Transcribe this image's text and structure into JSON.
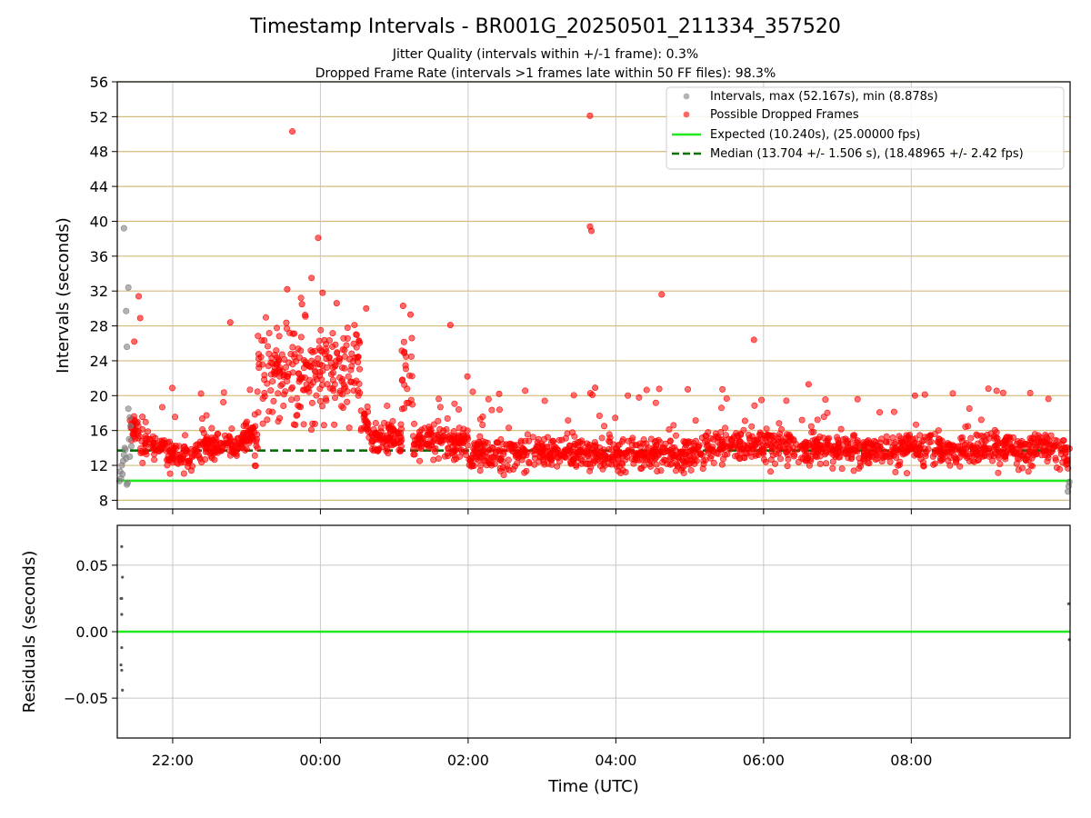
{
  "figure": {
    "title": "Timestamp Intervals - BR001G_20250501_211334_357520",
    "subtitle1": "Jitter Quality (intervals within +/-1 frame): 0.3%",
    "subtitle2": "Dropped Frame Rate (intervals >1 frames late within 50 FF files): 98.3%"
  },
  "colors": {
    "intervals": "#808080",
    "dropped": "#ff0000",
    "expected": "#1ee81e",
    "median": "#007000",
    "hgrid": "#d4b97a",
    "vgrid": "#c8c8c8"
  },
  "chart_data": [
    {
      "type": "scatter",
      "name": "intervals",
      "xlabel": "",
      "ylabel": "Intervals (seconds)",
      "x_unit": "hours since 00:00 UTC",
      "xlim": [
        -2.75,
        10.15
      ],
      "ylim": [
        7,
        56
      ],
      "y_ticks": [
        8,
        12,
        16,
        20,
        24,
        28,
        32,
        36,
        40,
        44,
        48,
        52,
        56
      ],
      "x_ticks": [
        {
          "value": -2,
          "label": "22:00"
        },
        {
          "value": 0,
          "label": "00:00"
        },
        {
          "value": 2,
          "label": "02:00"
        },
        {
          "value": 4,
          "label": "04:00"
        },
        {
          "value": 6,
          "label": "06:00"
        },
        {
          "value": 8,
          "label": "08:00"
        }
      ],
      "legend_position": "top-right",
      "legend": [
        "Intervals, max (52.167s), min (8.878s)",
        "Possible Dropped Frames",
        "Expected (10.240s), (25.00000 fps)",
        "Median (13.704 +/- 1.506 s), (18.48965 +/- 2.42 fps)"
      ],
      "expected_y": 10.24,
      "median_y": 13.704,
      "series": [
        {
          "name": "Intervals",
          "points": [
            [
              -2.72,
              10.2
            ],
            [
              -2.7,
              10.5
            ],
            [
              -2.68,
              11.0
            ],
            [
              -2.67,
              12.5
            ],
            [
              -2.66,
              13.2
            ],
            [
              -2.65,
              14.0
            ],
            [
              -2.64,
              13.8
            ],
            [
              -2.63,
              12.8
            ],
            [
              -2.62,
              9.8
            ],
            [
              -2.61,
              10.0
            ],
            [
              -2.66,
              39.2
            ],
            [
              -2.63,
              29.7
            ],
            [
              -2.6,
              32.4
            ],
            [
              -2.62,
              25.6
            ],
            [
              -2.6,
              18.5
            ],
            [
              -2.58,
              17.5
            ],
            [
              -2.57,
              16.5
            ],
            [
              -2.59,
              15.0
            ],
            [
              -2.56,
              14.2
            ],
            [
              -2.58,
              13.0
            ],
            [
              -2.71,
              11.3
            ],
            [
              -2.69,
              12.0
            ],
            [
              10.12,
              9.0
            ],
            [
              10.13,
              9.6
            ],
            [
              10.14,
              10.1
            ]
          ]
        },
        {
          "name": "Possible Dropped Frames",
          "notable_points": [
            [
              -0.38,
              50.3
            ],
            [
              -0.03,
              38.1
            ],
            [
              3.65,
              52.1
            ],
            [
              3.65,
              39.4
            ],
            [
              3.67,
              38.9
            ],
            [
              4.62,
              31.6
            ],
            [
              5.87,
              26.4
            ],
            [
              -2.46,
              31.4
            ],
            [
              -2.44,
              28.9
            ],
            [
              -2.52,
              26.2
            ],
            [
              -0.45,
              32.2
            ],
            [
              -0.12,
              33.5
            ],
            [
              0.03,
              31.8
            ],
            [
              -0.25,
              30.5
            ],
            [
              0.22,
              30.6
            ],
            [
              0.62,
              30.0
            ],
            [
              1.12,
              30.3
            ],
            [
              1.76,
              28.1
            ],
            [
              1.22,
              29.3
            ],
            [
              -1.22,
              28.4
            ],
            [
              1.99,
              22.2
            ],
            [
              2.42,
              20.2
            ],
            [
              3.72,
              20.9
            ],
            [
              6.61,
              21.3
            ],
            [
              8.05,
              20.0
            ]
          ]
        }
      ]
    },
    {
      "type": "scatter",
      "name": "residuals",
      "xlabel": "Time (UTC)",
      "ylabel": "Residuals (seconds)",
      "xlim": [
        -2.75,
        10.15
      ],
      "ylim": [
        -0.08,
        0.08
      ],
      "y_ticks": [
        {
          "value": 0.05,
          "label": "0.05"
        },
        {
          "value": 0.0,
          "label": "0.00"
        },
        {
          "value": -0.05,
          "label": "−0.05"
        }
      ],
      "zero_line_y": 0.0,
      "points": [
        [
          -2.69,
          0.064
        ],
        [
          -2.68,
          0.041
        ],
        [
          -2.69,
          0.025
        ],
        [
          -2.7,
          0.025
        ],
        [
          -2.69,
          0.013
        ],
        [
          -2.69,
          -0.012
        ],
        [
          -2.7,
          -0.025
        ],
        [
          -2.69,
          -0.029
        ],
        [
          -2.68,
          -0.044
        ],
        [
          10.13,
          0.021
        ],
        [
          10.14,
          -0.006
        ]
      ]
    }
  ]
}
